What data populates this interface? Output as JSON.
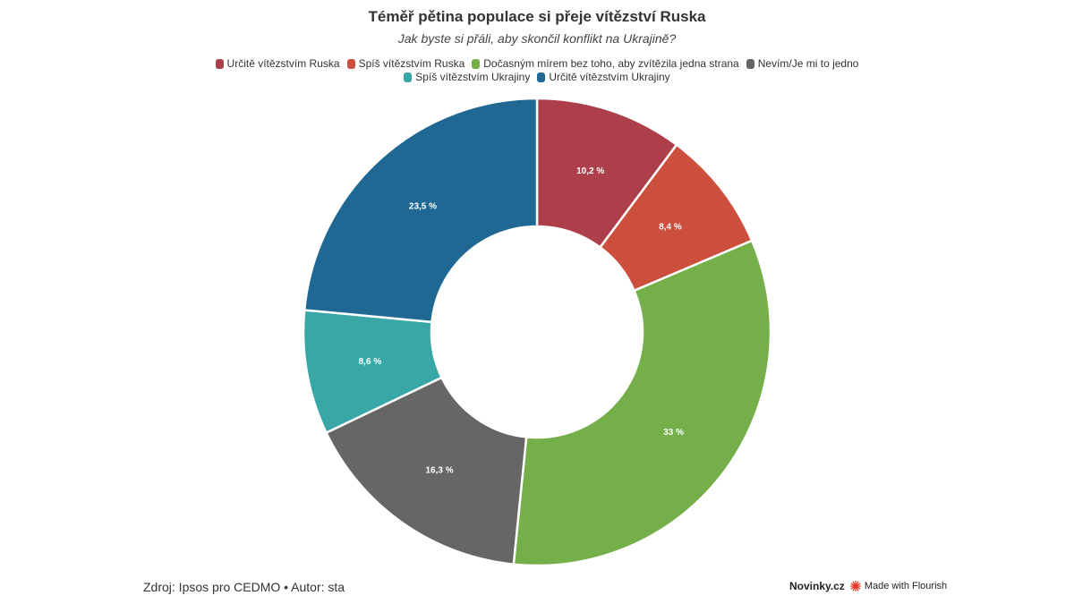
{
  "header": {
    "title": "Téměř pětina populace si přeje vítězství Ruska",
    "subtitle": "Jak byste si přáli, aby skončil konflikt na Ukrajině?"
  },
  "chart_data": {
    "type": "pie",
    "donut": true,
    "title": "Téměř pětina populace si přeje vítězství Ruska",
    "subtitle": "Jak byste si přáli, aby skončil konflikt na Ukrajině?",
    "legend_position": "top",
    "slices": [
      {
        "name": "Určitě vítězstvím Ruska",
        "value": 10.2,
        "label": "10,2 %",
        "color": "#ad3f4a"
      },
      {
        "name": "Spíš vítězstvím Ruska",
        "value": 8.4,
        "label": "8,4 %",
        "color": "#cc4f3e"
      },
      {
        "name": "Dočasným mírem bez toho, aby zvítězila jedna strana",
        "value": 33,
        "label": "33 %",
        "color": "#74af4a"
      },
      {
        "name": "Nevím/Je mi to jedno",
        "value": 16.3,
        "label": "16,3 %",
        "color": "#666666"
      },
      {
        "name": "Spíš vítězstvím Ukrajiny",
        "value": 8.6,
        "label": "8,6 %",
        "color": "#3aa7a7"
      },
      {
        "name": "Určitě vítězstvím Ukrajiny",
        "value": 23.5,
        "label": "23,5 %",
        "color": "#1e6893"
      }
    ]
  },
  "footer": {
    "source": "Zdroj: Ipsos pro CEDMO • Autor: sta",
    "brand": "Novinky.cz",
    "flourish": "Made with Flourish"
  },
  "colors": {
    "flourish_accent": "#e8392b"
  },
  "icons": {
    "flourish": "flourish-logo-icon"
  }
}
